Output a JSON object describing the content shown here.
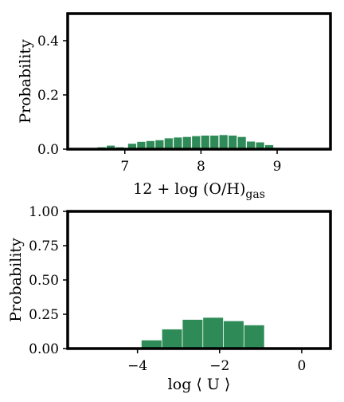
{
  "chart_data": [
    {
      "type": "bar",
      "id": "oh",
      "title": "",
      "xlabel_main": "12 + log (O/H)",
      "xlabel_sub": "gas",
      "ylabel": "Probability",
      "xlim": [
        6.25,
        9.7
      ],
      "ylim": [
        0,
        0.5
      ],
      "xticks": [
        7,
        8,
        9
      ],
      "xtick_labels": [
        "7",
        "8",
        "9"
      ],
      "yticks": [
        0,
        0.2,
        0.4
      ],
      "ytick_labels": [
        "0.0",
        "0.2",
        "0.4"
      ],
      "bar_color": "#2e8b57",
      "bar_width": 0.115,
      "bars": [
        {
          "x": 6.7,
          "y": 0.007
        },
        {
          "x": 6.82,
          "y": 0.013
        },
        {
          "x": 6.94,
          "y": 0.007
        },
        {
          "x": 7.1,
          "y": 0.02
        },
        {
          "x": 7.22,
          "y": 0.027
        },
        {
          "x": 7.34,
          "y": 0.03
        },
        {
          "x": 7.46,
          "y": 0.033
        },
        {
          "x": 7.58,
          "y": 0.04
        },
        {
          "x": 7.7,
          "y": 0.043
        },
        {
          "x": 7.82,
          "y": 0.045
        },
        {
          "x": 7.94,
          "y": 0.048
        },
        {
          "x": 8.06,
          "y": 0.05
        },
        {
          "x": 8.18,
          "y": 0.05
        },
        {
          "x": 8.3,
          "y": 0.052
        },
        {
          "x": 8.42,
          "y": 0.05
        },
        {
          "x": 8.54,
          "y": 0.045
        },
        {
          "x": 8.66,
          "y": 0.028
        },
        {
          "x": 8.78,
          "y": 0.025
        },
        {
          "x": 8.9,
          "y": 0.015
        },
        {
          "x": 9.0,
          "y": 0.005
        }
      ]
    },
    {
      "type": "bar",
      "id": "u",
      "title": "",
      "xlabel_main": "log ⟨ U ⟩",
      "xlabel_sub": "",
      "ylabel": "Probability",
      "xlim": [
        -5.7,
        0.7
      ],
      "ylim": [
        0,
        1.0
      ],
      "xticks": [
        -4,
        -2,
        0
      ],
      "xtick_labels": [
        "−4",
        "−2",
        "0"
      ],
      "yticks": [
        0,
        0.25,
        0.5,
        0.75,
        1.0
      ],
      "ytick_labels": [
        "0.00",
        "0.25",
        "0.50",
        "0.75",
        "1.00"
      ],
      "bar_color": "#2e8b57",
      "bar_width": 0.5,
      "bars": [
        {
          "x": -3.65,
          "y": 0.06
        },
        {
          "x": -3.15,
          "y": 0.14
        },
        {
          "x": -2.65,
          "y": 0.21
        },
        {
          "x": -2.15,
          "y": 0.225
        },
        {
          "x": -1.65,
          "y": 0.2
        },
        {
          "x": -1.15,
          "y": 0.17
        }
      ]
    }
  ]
}
